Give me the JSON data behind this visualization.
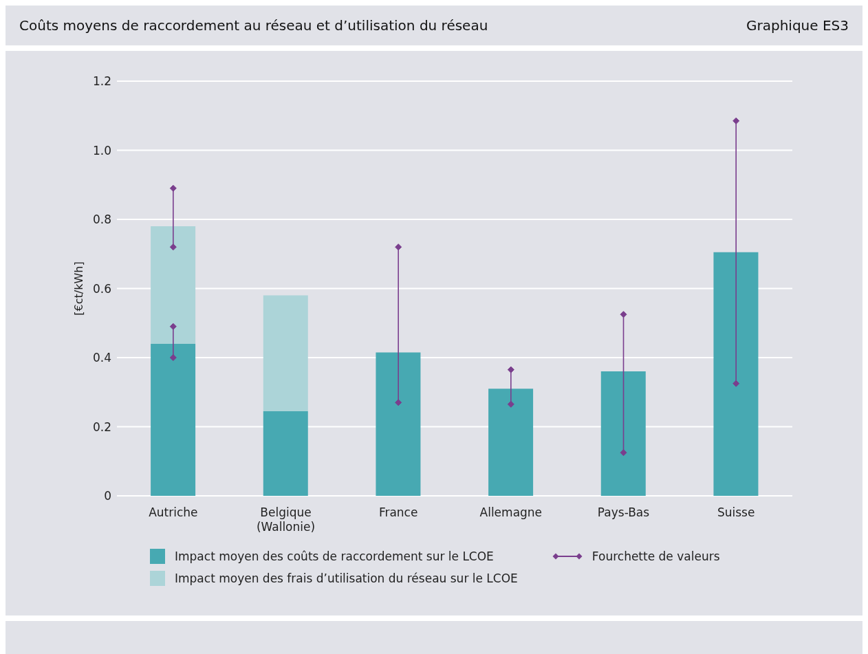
{
  "chart_data": {
    "type": "bar",
    "title": "Coûts moyens de raccordement au réseau et d’utilisation du réseau",
    "subtitle": "Graphique ES3",
    "ylabel": "[€ct/kWh]",
    "categories": [
      "Autriche",
      "Belgique\n(Wallonie)",
      "France",
      "Allemagne",
      "Pays-Bas",
      "Suisse"
    ],
    "stacked": true,
    "series": [
      {
        "name": "Impact moyen des coûts de raccordement sur le LCOE",
        "color": "#47a9b2",
        "values": [
          0.44,
          0.245,
          0.415,
          0.31,
          0.36,
          0.705
        ],
        "errors": [
          [
            0.4,
            0.49
          ],
          null,
          [
            0.27,
            0.72
          ],
          [
            0.265,
            0.365
          ],
          [
            0.125,
            0.525
          ],
          [
            0.325,
            1.085
          ]
        ]
      },
      {
        "name": "Impact moyen des frais d’utilisation du réseau sur le LCOE",
        "color": "#acd4d8",
        "values": [
          0.34,
          0.335,
          null,
          null,
          null,
          null
        ],
        "errors": [
          [
            0.72,
            0.89
          ],
          null,
          null,
          null,
          null,
          null
        ]
      },
      {
        "name": "Fourchette de valeurs",
        "type": "line",
        "color": "#7a3e8d",
        "values": [
          null,
          null,
          null,
          null,
          null,
          null
        ]
      }
    ],
    "ylim": [
      0,
      1.2
    ],
    "yticks": [
      0,
      0.2,
      0.4,
      0.6,
      0.8,
      {
        "value": 1,
        "label": "1.0"
      },
      1.2
    ],
    "grid": "y",
    "legend": "bottom",
    "marker": "diamond"
  }
}
